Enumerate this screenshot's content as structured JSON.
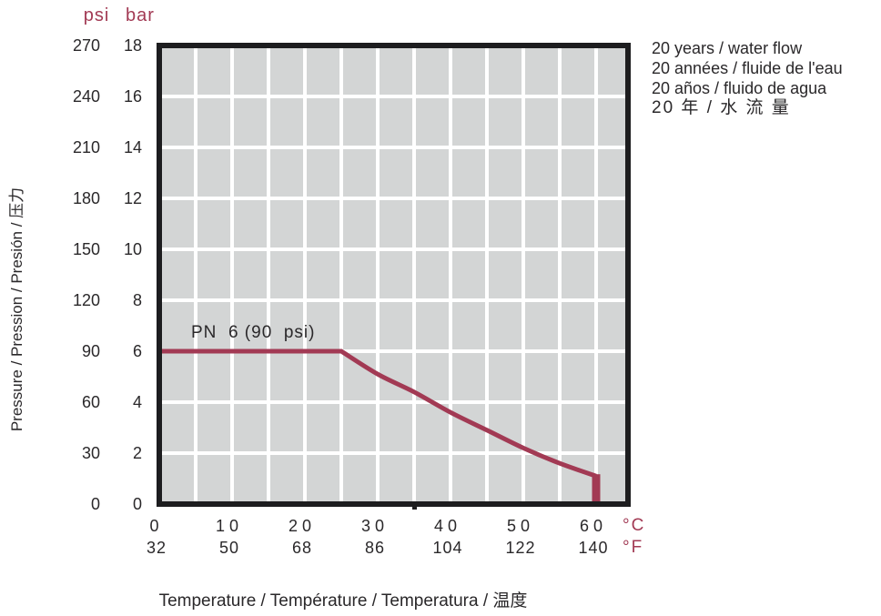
{
  "colors": {
    "accent": "#a23a54",
    "plot_background": "#d3d5d5",
    "grid_line": "#ffffff",
    "plot_border": "#1d1d1f",
    "text": "#2a282a"
  },
  "chart_data": {
    "type": "line",
    "title": "",
    "x_axis": {
      "label": "Temperature / Température / Temperatura / 温度",
      "unit_c": "°C",
      "unit_f": "°F",
      "ticks_c": [
        "0",
        "10",
        "20",
        "30",
        "40",
        "50",
        "60"
      ],
      "ticks_f": [
        "32",
        "50",
        "68",
        "86",
        "104",
        "122",
        "140"
      ],
      "range_c": [
        0,
        65
      ],
      "grid_step_c": 5,
      "minor_tick_c": 35
    },
    "y_axis": {
      "label": "Pressure / Pression / Presión / 压力",
      "unit_psi": "psi",
      "unit_bar": "bar",
      "ticks_psi": [
        "270",
        "240",
        "210",
        "180",
        "150",
        "120",
        "90",
        "60",
        "30",
        "0"
      ],
      "ticks_bar": [
        "18",
        "16",
        "14",
        "12",
        "10",
        "8",
        "6",
        "4",
        "2",
        "0"
      ],
      "range_bar": [
        0,
        18
      ],
      "grid_step_bar": 2
    },
    "grid_on": true,
    "legend_position": "top-right",
    "legend": [
      "20 years / water flow",
      "20 années / fluide de l'eau",
      "20 años / fluido de agua",
      "20 年 / 水 流 量"
    ],
    "series": [
      {
        "name": "PN 6",
        "annotation": "PN  6 (90  psi)",
        "color": "#a23a54",
        "points_c_bar": [
          [
            0,
            6
          ],
          [
            25,
            6
          ],
          [
            30,
            5.1
          ],
          [
            35,
            4.4
          ],
          [
            40,
            3.6
          ],
          [
            45,
            2.9
          ],
          [
            50,
            2.2
          ],
          [
            55,
            1.6
          ],
          [
            60,
            1.1
          ],
          [
            60,
            0
          ]
        ]
      }
    ]
  }
}
